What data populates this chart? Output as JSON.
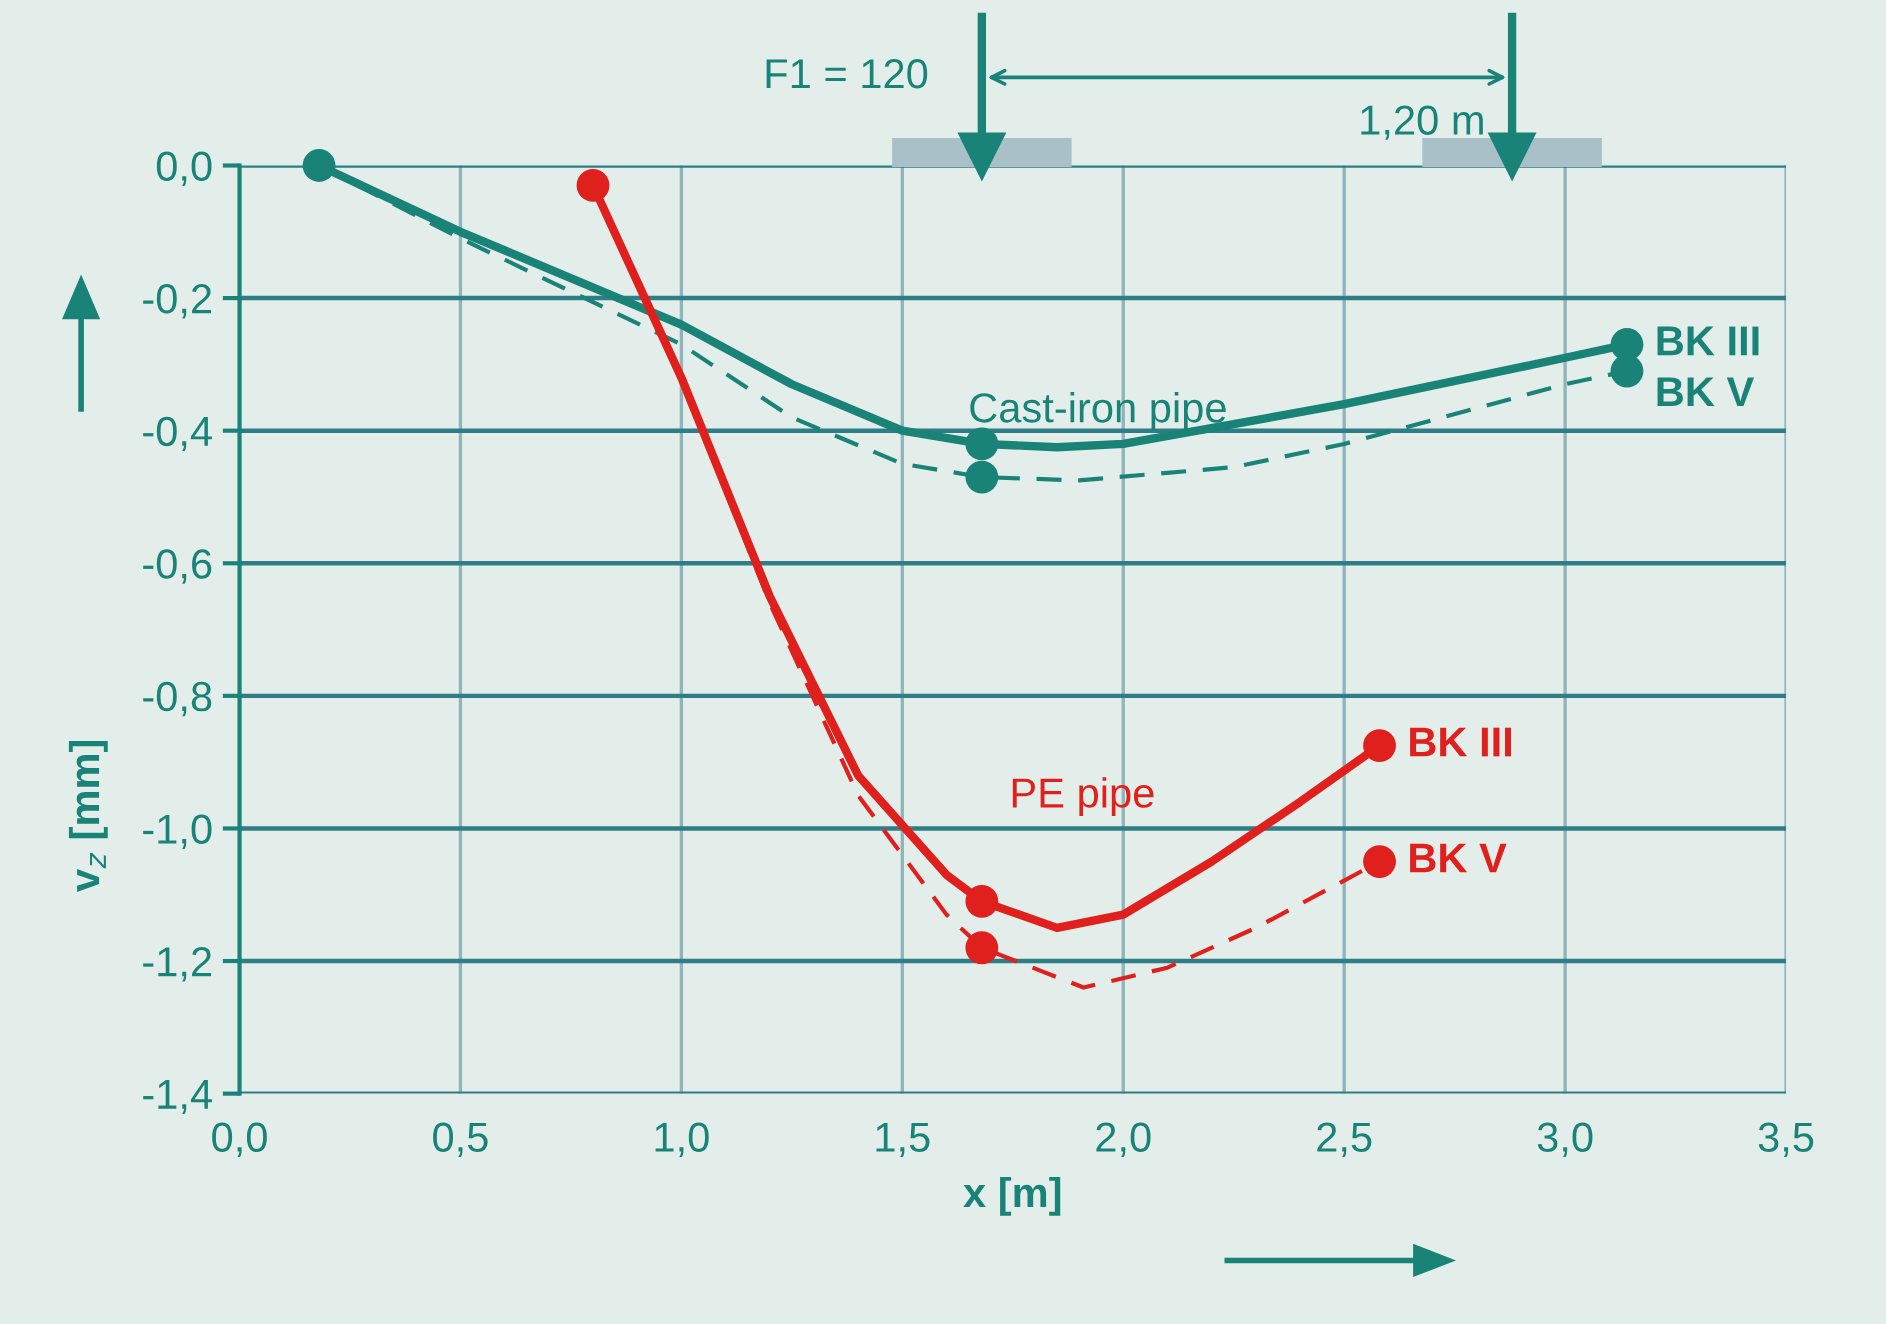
{
  "chart_data": {
    "type": "line",
    "xlabel": "x [m]",
    "ylabel": "v$_{z}$ [mm]",
    "xlim": [
      0,
      3.5
    ],
    "ylim": [
      -1.4,
      0
    ],
    "xticks": [
      {
        "value": 0,
        "label": "0,0"
      },
      {
        "value": 0.5,
        "label": "0,5"
      },
      {
        "value": 1,
        "label": "1,0"
      },
      {
        "value": 1.5,
        "label": "1,5"
      },
      {
        "value": 2,
        "label": "2,0"
      },
      {
        "value": 2.5,
        "label": "2,5"
      },
      {
        "value": 3,
        "label": "3,0"
      },
      {
        "value": 3.5,
        "label": "3,5"
      }
    ],
    "yticks": [
      {
        "value": 0,
        "label": "0,0"
      },
      {
        "value": -0.2,
        "label": "-0,2"
      },
      {
        "value": -0.4,
        "label": "-0,4"
      },
      {
        "value": -0.6,
        "label": "-0,6"
      },
      {
        "value": -0.8,
        "label": "-0,8"
      },
      {
        "value": -1.0,
        "label": "-1,0"
      },
      {
        "value": -1.2,
        "label": "-1,2"
      },
      {
        "value": -1.4,
        "label": "-1,4"
      }
    ],
    "grid": true,
    "legend": false,
    "series": [
      {
        "name": "BK III",
        "color": "#1a8378",
        "line_style": "solid",
        "x": [
          0.18,
          0.5,
          1.0,
          1.25,
          1.5,
          1.68,
          1.85,
          2.0,
          2.5,
          3.0,
          3.14
        ],
        "values": [
          0,
          -0.1,
          -0.24,
          -0.33,
          -0.4,
          -0.42,
          -0.425,
          -0.42,
          -0.36,
          -0.29,
          -0.27
        ]
      },
      {
        "name": "BK V",
        "color": "#1a8378",
        "line_style": "dashed",
        "x": [
          0.18,
          0.5,
          1.0,
          1.25,
          1.5,
          1.68,
          1.9,
          2.25,
          2.5,
          3.0,
          3.14
        ],
        "values": [
          0,
          -0.11,
          -0.27,
          -0.38,
          -0.45,
          -0.47,
          -0.475,
          -0.455,
          -0.42,
          -0.33,
          -0.31
        ]
      },
      {
        "name": "BK III",
        "color": "#e0201c",
        "line_style": "solid",
        "x": [
          0.8,
          1.0,
          1.2,
          1.4,
          1.6,
          1.68,
          1.85,
          2.0,
          2.2,
          2.4,
          2.58
        ],
        "values": [
          -0.03,
          -0.32,
          -0.65,
          -0.92,
          -1.07,
          -1.11,
          -1.15,
          -1.13,
          -1.05,
          -0.96,
          -0.875
        ]
      },
      {
        "name": "BK V",
        "color": "#e0201c",
        "line_style": "dashed",
        "x": [
          0.8,
          1.0,
          1.2,
          1.4,
          1.6,
          1.68,
          1.91,
          2.1,
          2.3,
          2.58
        ],
        "values": [
          -0.03,
          -0.32,
          -0.66,
          -0.95,
          -1.13,
          -1.18,
          -1.24,
          -1.21,
          -1.15,
          -1.05
        ]
      },
      {
        "type": "scatter",
        "color": "#1a8378",
        "marker": "circle",
        "x": [
          0.18,
          1.68,
          1.68,
          3.14,
          3.14
        ],
        "values": [
          0,
          -0.42,
          -0.47,
          -0.27,
          -0.31
        ]
      },
      {
        "type": "scatter",
        "color": "#e0201c",
        "marker": "circle",
        "x": [
          0.8,
          1.68,
          1.68,
          2.58,
          2.58
        ],
        "values": [
          -0.03,
          -1.11,
          -1.18,
          -0.875,
          -1.05
        ]
      }
    ],
    "annotations": [
      "Cast-iron pipe",
      "PE pipe",
      "F1 = 120",
      "1,20 m"
    ]
  }
}
